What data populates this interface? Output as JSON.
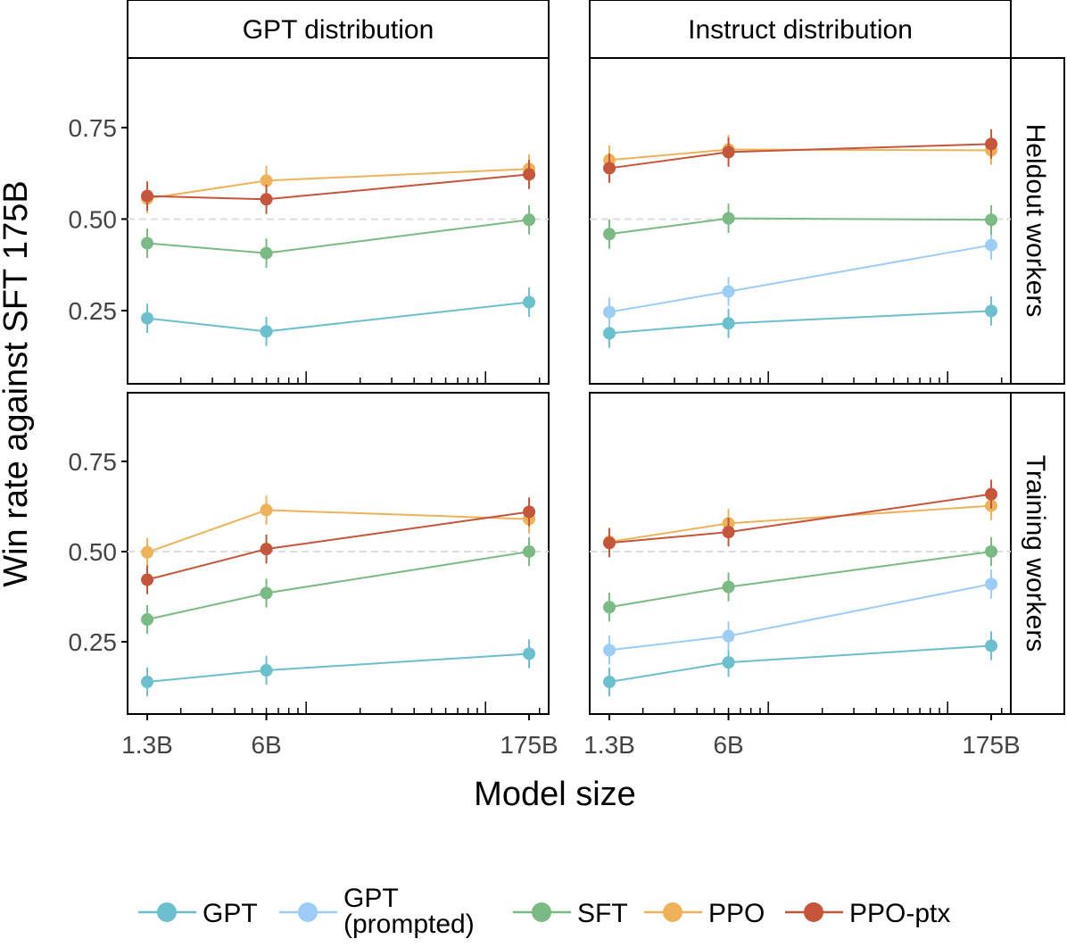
{
  "chart_data": {
    "type": "line",
    "ylabel": "Win rate against SFT 175B",
    "xlabel": "Model size",
    "x_scale": "log",
    "x": [
      1.3,
      6,
      175
    ],
    "x_tick_labels": [
      "1.3B",
      "6B",
      "175B"
    ],
    "ylim": [
      0.05,
      0.94
    ],
    "y_ticks": [
      0.25,
      0.5,
      0.75
    ],
    "y_tick_labels": [
      "0.25",
      "0.50",
      "0.75"
    ],
    "reference_line": 0.5,
    "error_bar_halfwidth": 0.04,
    "legend_position": "bottom",
    "columns": [
      "GPT distribution",
      "Instruct distribution"
    ],
    "rows": [
      "Heldout workers",
      "Training workers"
    ],
    "series_styles": [
      {
        "name": "GPT",
        "color": "#6cbfcd"
      },
      {
        "name": "GPT (prompted)",
        "name_lines": [
          "GPT",
          "(prompted)"
        ],
        "color": "#9dcdf6"
      },
      {
        "name": "SFT",
        "color": "#7bb985"
      },
      {
        "name": "PPO",
        "color": "#eeb25a"
      },
      {
        "name": "PPO-ptx",
        "color": "#c5553b"
      }
    ],
    "panels": [
      {
        "column": "GPT distribution",
        "row": "Heldout workers",
        "series": [
          {
            "name": "GPT",
            "values": [
              0.229,
              0.193,
              0.273
            ]
          },
          {
            "name": "SFT",
            "values": [
              0.434,
              0.407,
              0.498
            ]
          },
          {
            "name": "PPO",
            "values": [
              0.556,
              0.605,
              0.637
            ]
          },
          {
            "name": "PPO-ptx",
            "values": [
              0.563,
              0.554,
              0.622
            ]
          }
        ]
      },
      {
        "column": "Instruct distribution",
        "row": "Heldout workers",
        "series": [
          {
            "name": "GPT",
            "values": [
              0.188,
              0.215,
              0.249
            ]
          },
          {
            "name": "GPT (prompted)",
            "values": [
              0.246,
              0.302,
              0.429
            ]
          },
          {
            "name": "SFT",
            "values": [
              0.459,
              0.502,
              0.498
            ]
          },
          {
            "name": "PPO",
            "values": [
              0.661,
              0.69,
              0.688
            ]
          },
          {
            "name": "PPO-ptx",
            "values": [
              0.639,
              0.683,
              0.705
            ]
          }
        ]
      },
      {
        "column": "GPT distribution",
        "row": "Training workers",
        "series": [
          {
            "name": "GPT",
            "values": [
              0.139,
              0.171,
              0.217
            ]
          },
          {
            "name": "SFT",
            "values": [
              0.312,
              0.385,
              0.5
            ]
          },
          {
            "name": "PPO",
            "values": [
              0.498,
              0.615,
              0.59
            ]
          },
          {
            "name": "PPO-ptx",
            "values": [
              0.422,
              0.507,
              0.61
            ]
          }
        ]
      },
      {
        "column": "Instruct distribution",
        "row": "Training workers",
        "series": [
          {
            "name": "GPT",
            "values": [
              0.139,
              0.193,
              0.239
            ]
          },
          {
            "name": "GPT (prompted)",
            "values": [
              0.227,
              0.266,
              0.41
            ]
          },
          {
            "name": "SFT",
            "values": [
              0.346,
              0.402,
              0.5
            ]
          },
          {
            "name": "PPO",
            "values": [
              0.527,
              0.578,
              0.627
            ]
          },
          {
            "name": "PPO-ptx",
            "values": [
              0.524,
              0.554,
              0.659
            ]
          }
        ]
      }
    ]
  }
}
